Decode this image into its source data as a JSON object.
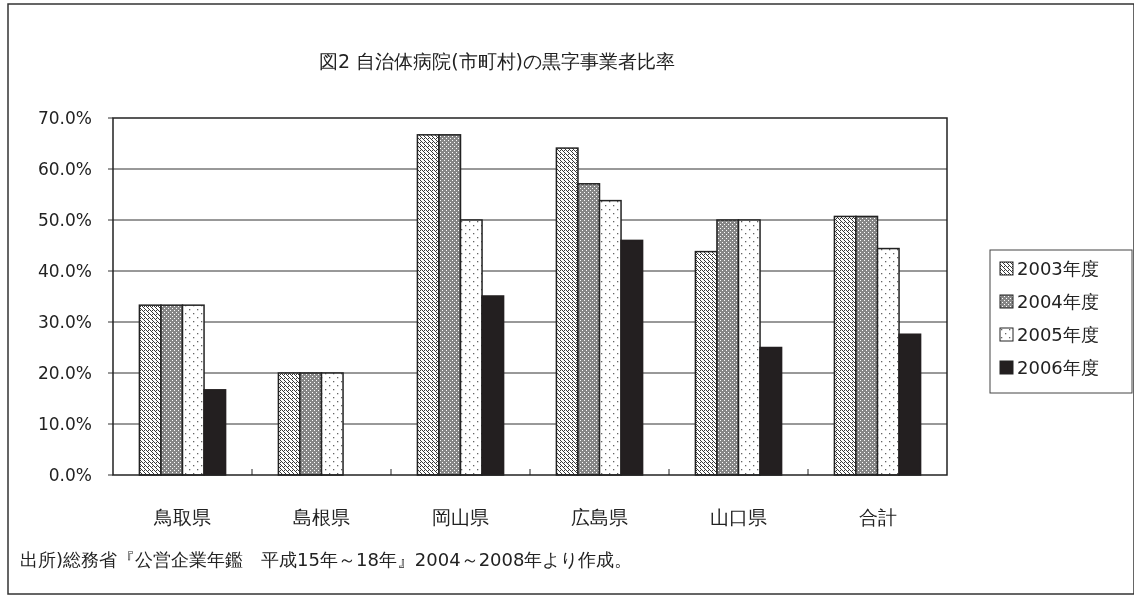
{
  "chart_data": {
    "type": "bar",
    "title": "図2 自治体病院(市町村)の黒字事業者比率",
    "categories": [
      "鳥取県",
      "島根県",
      "岡山県",
      "広島県",
      "山口県",
      "合計"
    ],
    "series": [
      {
        "name": "2003年度",
        "color": "#222222",
        "values": [
          33.3,
          20.0,
          66.7,
          64.1,
          43.8,
          50.7
        ]
      },
      {
        "name": "2004年度",
        "color": "#222222",
        "values": [
          33.3,
          20.0,
          66.7,
          57.1,
          50.0,
          50.7
        ]
      },
      {
        "name": "2005年度",
        "color": "#222222",
        "values": [
          33.3,
          20.0,
          50.0,
          53.8,
          50.0,
          44.4
        ]
      },
      {
        "name": "2006年度",
        "color": "#231f20",
        "values": [
          16.7,
          0,
          35.1,
          46.0,
          25.0,
          27.6
        ]
      }
    ],
    "ylim": [
      0,
      70
    ],
    "yticks": [
      {
        "value": 0,
        "label": "0.0%"
      },
      {
        "value": 10,
        "label": "10.0%"
      },
      {
        "value": 20,
        "label": "20.0%"
      },
      {
        "value": 30,
        "label": "30.0%"
      },
      {
        "value": 40,
        "label": "40.0%"
      },
      {
        "value": 50,
        "label": "50.0%"
      },
      {
        "value": 60,
        "label": "60.0%"
      },
      {
        "value": 70,
        "label": "70.0%"
      }
    ],
    "grid": "y",
    "legend": "right",
    "annotations": [
      "出所)総務省『公営企業年鑑　平成15年～18年』2004～2008年より作成。"
    ]
  }
}
